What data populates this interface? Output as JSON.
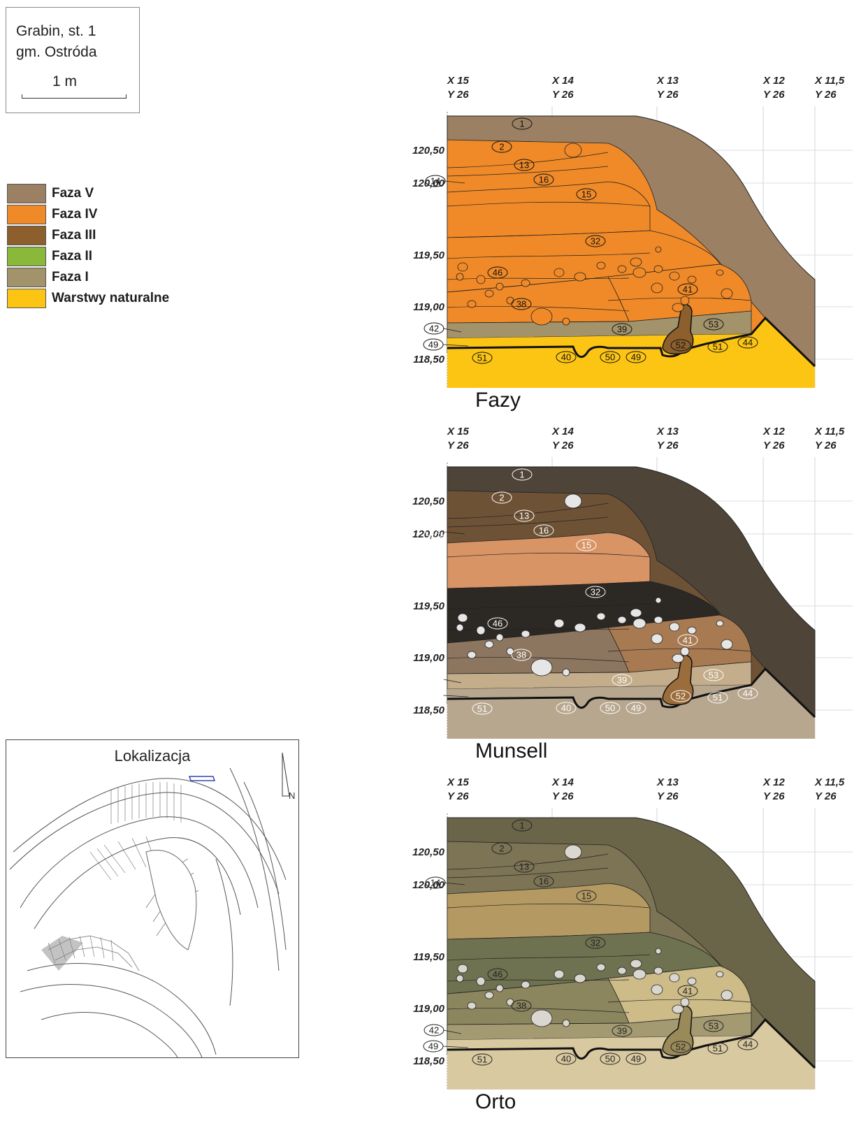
{
  "site": {
    "name": "Grabin, st. 1",
    "district": "gm. Ostróda",
    "scale": "1 m"
  },
  "legend": [
    {
      "label": "Faza V",
      "color": "#9b8063"
    },
    {
      "label": "Faza IV",
      "color": "#f08a28"
    },
    {
      "label": "Faza III",
      "color": "#8c5f2c"
    },
    {
      "label": "Faza II",
      "color": "#8ab83a"
    },
    {
      "label": "Faza I",
      "color": "#a3936a"
    },
    {
      "label": "Warstwy naturalne",
      "color": "#fcc514"
    }
  ],
  "localization": {
    "title": "Lokalizacja",
    "north": "N"
  },
  "columns": [
    {
      "x": "X 15",
      "y": "Y 26"
    },
    {
      "x": "X 14",
      "y": "Y 26"
    },
    {
      "x": "X 13",
      "y": "Y 26"
    },
    {
      "x": "X 12",
      "y": "Y 26"
    },
    {
      "x": "X 11,5",
      "y": "Y 26"
    }
  ],
  "elevations": [
    "120,50",
    "120,00",
    "119,50",
    "119,00",
    "118,50"
  ],
  "layer_labels": [
    "1",
    "2",
    "13",
    "14",
    "16",
    "15",
    "32",
    "46",
    "41",
    "38",
    "39",
    "42",
    "53",
    "52",
    "49",
    "51",
    "44",
    "40",
    "50",
    "49",
    "51"
  ],
  "panels": [
    {
      "title": "Fazy",
      "colors": {
        "top": "#9b8063",
        "upper": "#f08a28",
        "mid": "#f08a28",
        "dark": "#f08a28",
        "lower": "#f08a28",
        "low2": "#f08a28",
        "base": "#fcc514",
        "pit": "#8c5f2c",
        "thin": "#a3936a",
        "stone": "#f08a28",
        "text": "#111111"
      }
    },
    {
      "title": "Munsell",
      "colors": {
        "top": "#4e4438",
        "upper": "#6e5236",
        "mid": "#d99466",
        "dark": "#2c2823",
        "lower": "#a87a52",
        "low2": "#8d7660",
        "base": "#b8a78f",
        "pit": "#9b6d3a",
        "thin": "#c4ad8a",
        "stone": "#e6e6e6",
        "text": "#ffffff"
      }
    },
    {
      "title": "Orto",
      "colors": {
        "top": "#6a6448",
        "upper": "#7d7456",
        "mid": "#b49a62",
        "dark": "#6f7250",
        "lower": "#cdbb88",
        "low2": "#8c865e",
        "base": "#d8c9a0",
        "pit": "#9a8a5a",
        "thin": "#a39a72",
        "stone": "#d9d7cf",
        "text": "#222222"
      }
    }
  ]
}
